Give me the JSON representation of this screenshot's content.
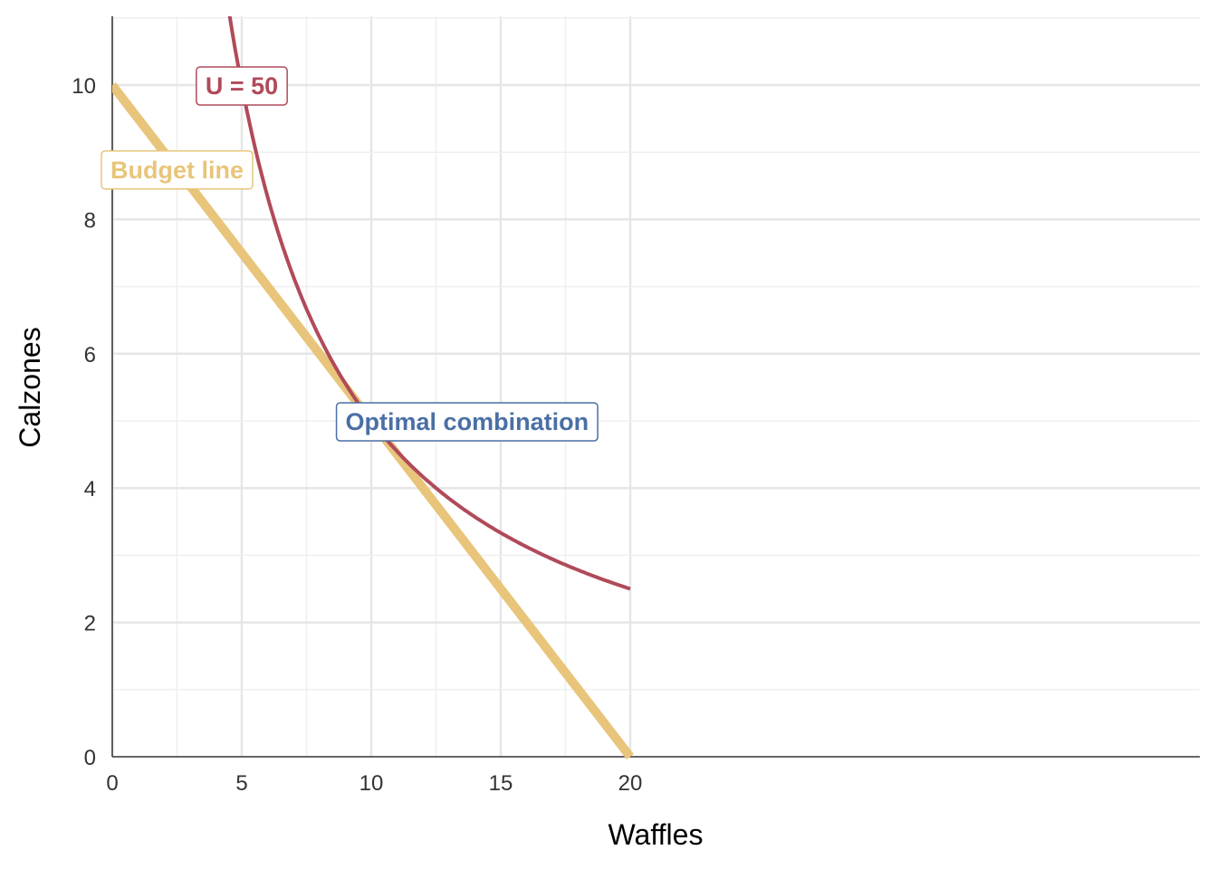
{
  "chart_data": {
    "type": "line",
    "xlabel": "Waffles",
    "ylabel": "Calzones",
    "xlim": [
      0,
      21
    ],
    "ylim": [
      0,
      11
    ],
    "x_ticks": [
      0,
      5,
      10,
      15,
      20
    ],
    "y_ticks": [
      0,
      2,
      4,
      6,
      8,
      10
    ],
    "grid": true,
    "colors": {
      "budget": "#E8C57A",
      "utility": "#B04A5A",
      "point": "#4A6FA5",
      "grid_major": "#E6E6E6",
      "grid_minor": "#EFEFEF",
      "axis": "#333333"
    },
    "series": [
      {
        "name": "Budget line",
        "kind": "line",
        "points": [
          [
            0,
            10
          ],
          [
            20,
            0
          ]
        ],
        "color": "#E8C57A"
      },
      {
        "name": "U = 50",
        "kind": "indifference_curve",
        "utility": 50,
        "x_range": [
          4.5,
          20
        ],
        "color": "#B04A5A"
      }
    ],
    "points": [
      {
        "x": 10,
        "y": 5,
        "label": "Optimal combination",
        "color": "#4A6FA5"
      }
    ],
    "annotations": [
      {
        "text": "U = 50",
        "x": 5.0,
        "y": 10.0,
        "color": "#B04A5A"
      },
      {
        "text": "Budget line",
        "x": 2.5,
        "y": 8.75,
        "color": "#E8C57A"
      },
      {
        "text": "Optimal combination",
        "x": 13.7,
        "y": 5.0,
        "color": "#4A6FA5"
      }
    ]
  }
}
